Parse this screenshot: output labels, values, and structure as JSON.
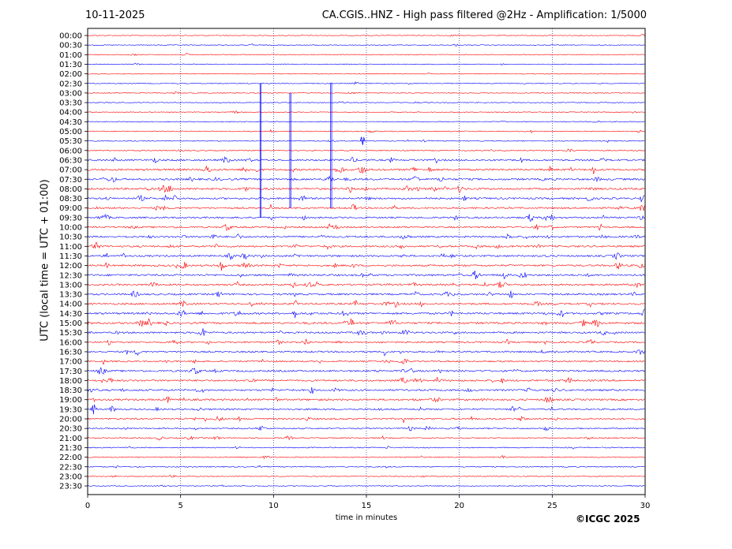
{
  "header": {
    "date": "10-11-2025",
    "title": "CA.CGIS..HNZ - High pass filtered @2Hz - Amplification: 1/5000"
  },
  "footer": {
    "copyright": "©ICGC 2025"
  },
  "colors": {
    "trace_a": "#ff0000",
    "trace_b": "#0000ff",
    "axis": "#000000",
    "grid": "#000080"
  },
  "chart_data": {
    "type": "line",
    "title": "CA.CGIS..HNZ - High pass filtered @2Hz - Amplification: 1/5000",
    "xlabel": "time in minutes",
    "ylabel": "UTC (local time = UTC + 01:00)",
    "xlim": [
      0,
      30
    ],
    "x_ticks": [
      0,
      5,
      10,
      15,
      20,
      25,
      30
    ],
    "grid": "vertical dotted lines at x = 5, 10, 15, 20, 25",
    "row_labels": [
      "00:00",
      "00:30",
      "01:00",
      "01:30",
      "02:00",
      "02:30",
      "03:00",
      "03:30",
      "04:00",
      "04:30",
      "05:00",
      "05:30",
      "06:00",
      "06:30",
      "07:00",
      "07:30",
      "08:00",
      "08:30",
      "09:00",
      "09:30",
      "10:00",
      "10:30",
      "11:00",
      "11:30",
      "12:00",
      "12:30",
      "13:00",
      "13:30",
      "14:00",
      "14:30",
      "15:00",
      "15:30",
      "16:00",
      "16:30",
      "17:00",
      "17:30",
      "18:00",
      "18:30",
      "19:00",
      "19:30",
      "20:00",
      "20:30",
      "21:00",
      "21:30",
      "22:00",
      "22:30",
      "23:00",
      "23:30"
    ],
    "trace_color_pattern": [
      "#ff0000",
      "#0000ff"
    ],
    "activity_by_row": [
      0.15,
      0.15,
      0.15,
      0.15,
      0.15,
      0.2,
      0.15,
      0.15,
      0.15,
      0.2,
      0.25,
      0.25,
      0.3,
      0.8,
      0.9,
      0.9,
      0.9,
      0.8,
      0.7,
      0.7,
      0.7,
      0.8,
      0.8,
      0.8,
      0.8,
      0.9,
      0.8,
      0.8,
      0.8,
      0.9,
      0.9,
      0.8,
      0.7,
      0.7,
      0.6,
      0.8,
      0.8,
      0.8,
      0.8,
      0.7,
      0.7,
      0.5,
      0.4,
      0.3,
      0.3,
      0.3,
      0.2,
      0.2
    ],
    "notable_events": [
      {
        "x": 9.3,
        "row": "02:30",
        "to_row": "09:30"
      },
      {
        "x": 10.9,
        "row": "03:00",
        "to_row": "09:00"
      },
      {
        "x": 13.1,
        "row": "02:30",
        "to_row": "09:00"
      },
      {
        "x": 14.8,
        "row": "05:30",
        "to_row": "05:30"
      }
    ]
  }
}
